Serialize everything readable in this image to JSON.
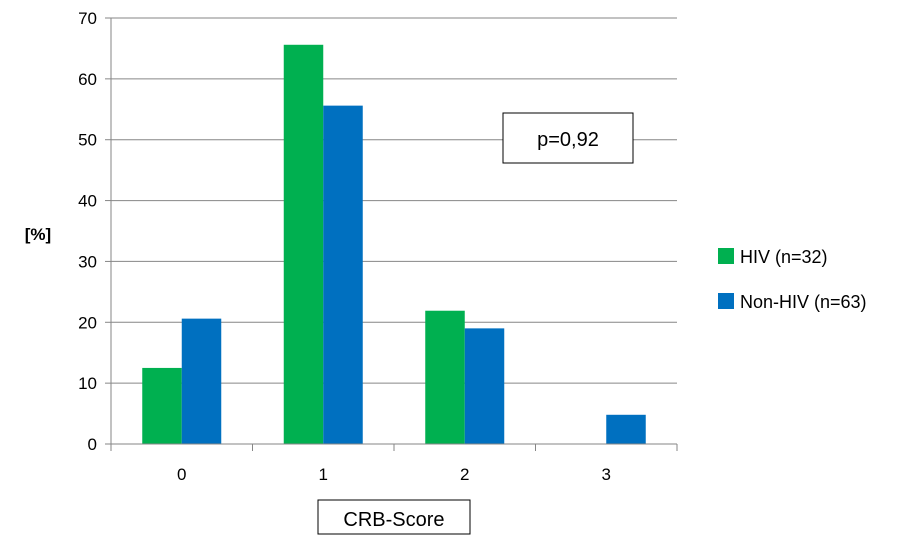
{
  "chart_data": {
    "type": "bar",
    "categories": [
      "0",
      "1",
      "2",
      "3"
    ],
    "series": [
      {
        "name": "HIV (n=32)",
        "color": "#00b050",
        "values": [
          12.5,
          65.6,
          21.9,
          0
        ]
      },
      {
        "name": "Non-HIV (n=63)",
        "color": "#0070c0",
        "values": [
          20.6,
          55.6,
          19.0,
          4.8
        ]
      }
    ],
    "ylabel": "[%]",
    "xlabel": "CRB-Score",
    "ylim": [
      0,
      70
    ],
    "yticks": [
      0,
      10,
      20,
      30,
      40,
      50,
      60,
      70
    ],
    "grid": true,
    "legend": "right",
    "annotation": "p=0,92",
    "grid_color": "#868686",
    "axis_color": "#868686"
  }
}
